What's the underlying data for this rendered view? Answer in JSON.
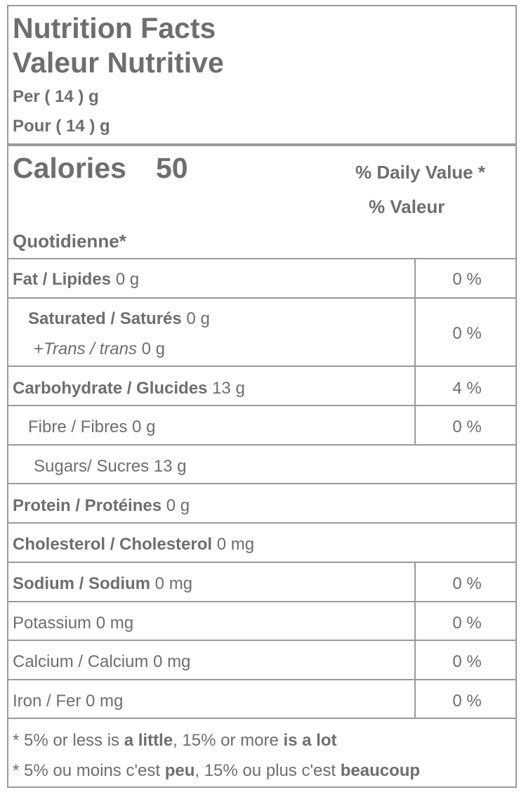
{
  "header": {
    "title_en": "Nutrition Facts",
    "title_fr": "Valeur Nutritive",
    "per_en": "Per ( 14 ) g",
    "per_fr": "Pour ( 14 ) g"
  },
  "calories": {
    "label": "Calories",
    "value": "50",
    "dv_en": "% Daily Value *",
    "dv_fr_1": "% Valeur",
    "dv_fr_2": "Quotidienne*"
  },
  "rows": {
    "fat": {
      "label": "Fat / Lipides",
      "amount": "0 g",
      "dv": "0 %"
    },
    "saturated": {
      "label": "Saturated / Saturés",
      "amount": "0 g",
      "dv": "0 %"
    },
    "trans": {
      "prefix": "+",
      "label": "Trans / trans",
      "amount": "0 g"
    },
    "carbohydrate": {
      "label": "Carbohydrate / Glucides",
      "amount": "13 g",
      "dv": "4 %"
    },
    "fibre": {
      "label": "Fibre / Fibres",
      "amount": "0 g",
      "dv": "0 %"
    },
    "sugars": {
      "label": "Sugars/ Sucres",
      "amount": "13 g"
    },
    "protein": {
      "label": "Protein / Protéines",
      "amount": "0 g"
    },
    "cholesterol": {
      "label": "Cholesterol / Cholesterol",
      "amount": "0 mg"
    },
    "sodium": {
      "label": "Sodium / Sodium",
      "amount": "0 mg",
      "dv": "0 %"
    },
    "potassium": {
      "label": "Potassium",
      "amount": "0 mg",
      "dv": "0 %"
    },
    "calcium": {
      "label": "Calcium / Calcium",
      "amount": "0 mg",
      "dv": "0 %"
    },
    "iron": {
      "label": "Iron / Fer",
      "amount": "0 mg",
      "dv": "0 %"
    }
  },
  "footnote": {
    "en_1": "* 5% or less is ",
    "en_b1": "a little",
    "en_2": ", 15% or more ",
    "en_b2": "is a lot",
    "fr_1": "* 5% ou moins c'est ",
    "fr_b1": "peu",
    "fr_2": ", 15% ou plus c'est ",
    "fr_b2": "beaucoup"
  },
  "colors": {
    "text": "#6e6e6e",
    "border": "#9a9a9a"
  }
}
